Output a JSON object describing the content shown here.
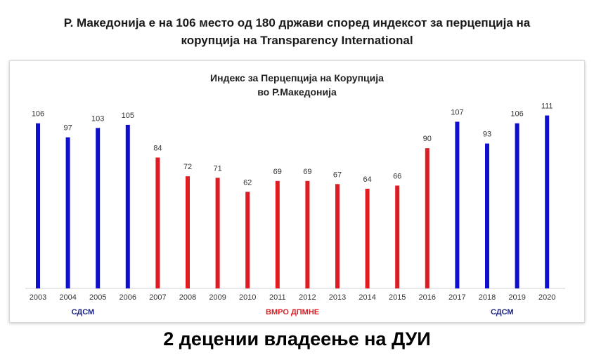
{
  "headline": {
    "line1": "Р. Македонија е на 106 место од 180 држави според индексот за перцепција на",
    "line2": "корупција на Transparency International"
  },
  "footer_text": "2 децении владеење на ДУИ",
  "chart_data": {
    "type": "bar",
    "title_line1": "Индекс за Перцепција на Корупција",
    "title_line2": "во Р.Македонија",
    "categories": [
      "2003",
      "2004",
      "2005",
      "2006",
      "2007",
      "2008",
      "2009",
      "2010",
      "2011",
      "2012",
      "2013",
      "2014",
      "2015",
      "2016",
      "2017",
      "2018",
      "2019",
      "2020"
    ],
    "values": [
      106,
      97,
      103,
      105,
      84,
      72,
      71,
      62,
      69,
      69,
      67,
      64,
      66,
      90,
      107,
      93,
      106,
      111
    ],
    "bar_colors": [
      "#1010cc",
      "#1010cc",
      "#1010cc",
      "#1010cc",
      "#dd1c24",
      "#dd1c24",
      "#dd1c24",
      "#dd1c24",
      "#dd1c24",
      "#dd1c24",
      "#dd1c24",
      "#dd1c24",
      "#dd1c24",
      "#dd1c24",
      "#1010cc",
      "#1010cc",
      "#1010cc",
      "#1010cc"
    ],
    "ylim": [
      0,
      120
    ],
    "grid": false,
    "group_labels": [
      {
        "text": "СДСМ",
        "from": "2003",
        "to": "2006",
        "color": "#1a237e"
      },
      {
        "text": "ВМРО ДПМНЕ",
        "from": "2007",
        "to": "2016",
        "color": "#dd1c24"
      },
      {
        "text": "СДСМ",
        "from": "2017",
        "to": "2020",
        "color": "#1a237e"
      }
    ]
  }
}
